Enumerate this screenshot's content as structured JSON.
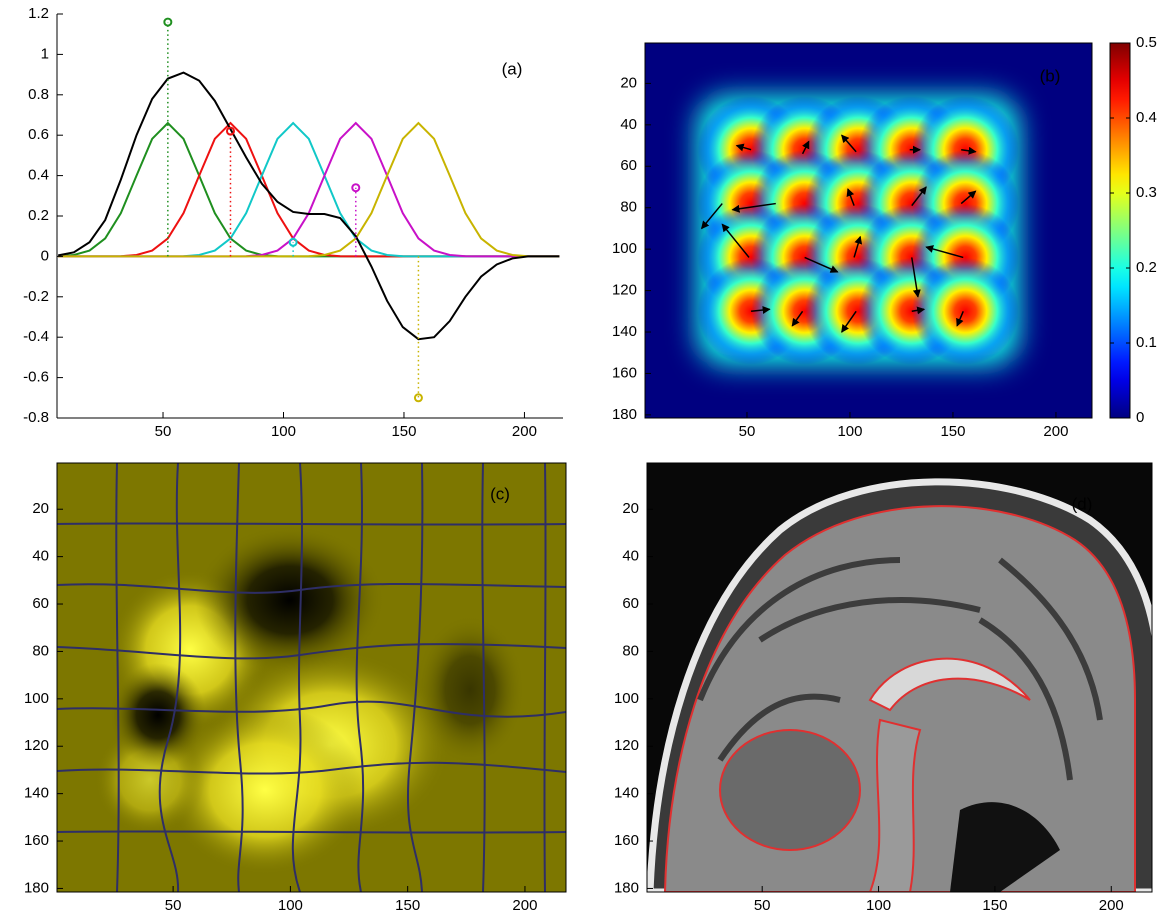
{
  "chart_data": [
    {
      "type": "line",
      "annotation": "(a)",
      "x": [
        6.5,
        13,
        19.5,
        26,
        32.5,
        39,
        45.5,
        52,
        58.5,
        65,
        71.5,
        78,
        84.5,
        91,
        97.5,
        104,
        110.5,
        117,
        123.5,
        130,
        136.5,
        143,
        149.5,
        156,
        162.5,
        169,
        175.5,
        182,
        188.5,
        195,
        201.5,
        208,
        214.5
      ],
      "xlim": [
        6,
        216
      ],
      "ylim": [
        -0.8,
        1.2
      ],
      "xticks": [
        50,
        100,
        150,
        200
      ],
      "yticks": [
        -0.8,
        -0.6,
        -0.4,
        -0.2,
        0,
        0.2,
        0.4,
        0.6,
        0.8,
        1,
        1.2
      ],
      "series": [
        {
          "color": "#1f8f1f",
          "values": [
            0.001,
            0.007,
            0.029,
            0.089,
            0.214,
            0.4,
            0.582,
            0.66,
            0.582,
            0.4,
            0.214,
            0.089,
            0.029,
            0.007,
            0.001,
            0,
            0,
            0,
            0,
            0,
            0,
            0,
            0,
            0,
            0,
            0,
            0,
            0,
            0,
            0,
            0,
            0,
            0
          ]
        },
        {
          "color": "#ee1111",
          "values": [
            0,
            0,
            0,
            0,
            0.001,
            0.007,
            0.029,
            0.089,
            0.214,
            0.4,
            0.582,
            0.66,
            0.582,
            0.4,
            0.214,
            0.089,
            0.029,
            0.007,
            0.001,
            0,
            0,
            0,
            0,
            0,
            0,
            0,
            0,
            0,
            0,
            0,
            0,
            0,
            0
          ]
        },
        {
          "color": "#11c8c8",
          "values": [
            0,
            0,
            0,
            0,
            0,
            0,
            0,
            0,
            0.001,
            0.007,
            0.029,
            0.089,
            0.214,
            0.4,
            0.582,
            0.66,
            0.582,
            0.4,
            0.214,
            0.089,
            0.029,
            0.007,
            0.001,
            0,
            0,
            0,
            0,
            0,
            0,
            0,
            0,
            0,
            0
          ]
        },
        {
          "color": "#c811c8",
          "values": [
            0,
            0,
            0,
            0,
            0,
            0,
            0,
            0,
            0,
            0,
            0,
            0,
            0.001,
            0.007,
            0.029,
            0.089,
            0.214,
            0.4,
            0.582,
            0.66,
            0.582,
            0.4,
            0.214,
            0.089,
            0.029,
            0.007,
            0.001,
            0,
            0,
            0,
            0,
            0,
            0
          ]
        },
        {
          "color": "#c8b400",
          "values": [
            0,
            0,
            0,
            0,
            0,
            0,
            0,
            0,
            0,
            0,
            0,
            0,
            0,
            0,
            0,
            0,
            0.001,
            0.007,
            0.029,
            0.089,
            0.214,
            0.4,
            0.582,
            0.66,
            0.582,
            0.4,
            0.214,
            0.089,
            0.029,
            0.007,
            0.001,
            0,
            0
          ]
        },
        {
          "color": "#000000",
          "values": [
            0.005,
            0.02,
            0.07,
            0.18,
            0.38,
            0.6,
            0.78,
            0.88,
            0.91,
            0.87,
            0.77,
            0.63,
            0.49,
            0.36,
            0.27,
            0.22,
            0.21,
            0.21,
            0.19,
            0.1,
            -0.05,
            -0.22,
            -0.35,
            -0.41,
            -0.4,
            -0.32,
            -0.2,
            -0.1,
            -0.04,
            -0.01,
            0,
            0,
            0
          ]
        }
      ],
      "stems": {
        "x": [
          52,
          78,
          104,
          130,
          156
        ],
        "values": [
          1.16,
          0.62,
          0.07,
          0.34,
          -0.7
        ],
        "colors": [
          "#1f8f1f",
          "#ee1111",
          "#11c8c8",
          "#c811c8",
          "#c8b400"
        ]
      }
    },
    {
      "type": "heatmap",
      "annotation": "(b)",
      "xlim": [
        0.5,
        217.5
      ],
      "ylim": [
        0.5,
        181.5
      ],
      "y_reversed": true,
      "xticks": [
        50,
        100,
        150,
        200
      ],
      "yticks": [
        20,
        40,
        60,
        80,
        100,
        120,
        140,
        160,
        180
      ],
      "blob_x": [
        52,
        78,
        104,
        130,
        156
      ],
      "blob_y": [
        52,
        78,
        104,
        130
      ],
      "peak": 0.44,
      "arrows": [
        [
          52,
          52,
          45,
          50
        ],
        [
          77,
          54,
          80,
          48
        ],
        [
          103,
          53,
          96,
          45
        ],
        [
          129,
          52,
          134,
          52
        ],
        [
          154,
          52,
          161,
          53
        ],
        [
          38,
          78,
          28,
          90
        ],
        [
          64,
          78,
          43,
          81
        ],
        [
          102,
          79,
          99,
          71
        ],
        [
          130,
          79,
          137,
          70
        ],
        [
          154,
          78,
          161,
          72
        ],
        [
          51,
          104,
          38,
          88
        ],
        [
          78,
          104,
          94,
          111
        ],
        [
          102,
          104,
          105,
          94
        ],
        [
          130,
          104,
          133,
          123
        ],
        [
          155,
          104,
          137,
          99
        ],
        [
          52,
          130,
          61,
          129
        ],
        [
          77,
          130,
          72,
          137
        ],
        [
          103,
          130,
          96,
          140
        ],
        [
          130,
          130,
          136,
          129
        ],
        [
          155,
          130,
          152,
          137
        ]
      ],
      "colorbar": {
        "lim": [
          0,
          0.5
        ],
        "ticks": [
          0,
          0.1,
          0.2,
          0.3,
          0.4,
          0.5
        ]
      }
    },
    {
      "type": "image",
      "annotation": "(c)",
      "xlim": [
        0.5,
        217.5
      ],
      "ylim": [
        0.5,
        181.5
      ],
      "y_reversed": true,
      "xticks": [
        50,
        100,
        150,
        200
      ],
      "yticks": [
        20,
        40,
        60,
        80,
        100,
        120,
        140,
        160,
        180
      ]
    },
    {
      "type": "image",
      "annotation": "(d)",
      "xlim": [
        0.5,
        217.5
      ],
      "ylim": [
        0.5,
        181.5
      ],
      "y_reversed": true,
      "xticks": [
        50,
        100,
        150,
        200
      ],
      "yticks": [
        20,
        40,
        60,
        80,
        100,
        120,
        140,
        160,
        180
      ]
    }
  ]
}
